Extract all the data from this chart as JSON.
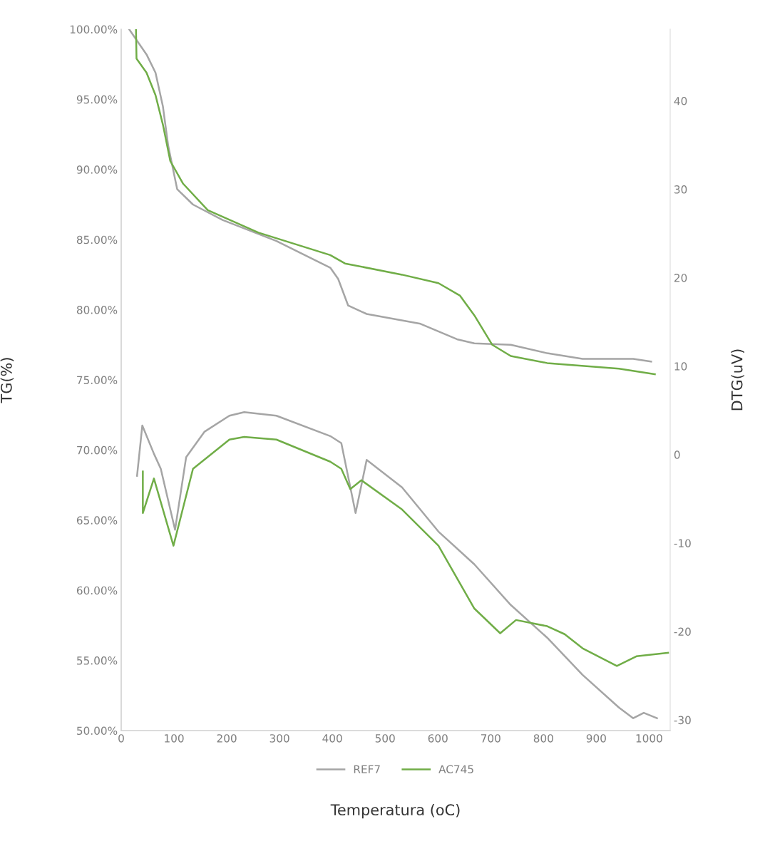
{
  "chart_data": {
    "type": "line",
    "xlabel": "Temperatura (oC)",
    "ylabel": "TG(%)",
    "y2label": "DTG(uV)",
    "xlim": [
      0,
      1040
    ],
    "xticks": [
      0,
      100,
      200,
      300,
      400,
      500,
      600,
      700,
      800,
      900,
      1000
    ],
    "ylim": [
      50,
      100
    ],
    "yticks": [
      {
        "value": 50,
        "label": "50.00%"
      },
      {
        "value": 55,
        "label": "55.00%"
      },
      {
        "value": 60,
        "label": "60.00%"
      },
      {
        "value": 65,
        "label": "65.00%"
      },
      {
        "value": 70,
        "label": "70.00%"
      },
      {
        "value": 75,
        "label": "75.00%"
      },
      {
        "value": 80,
        "label": "80.00%"
      },
      {
        "value": 85,
        "label": "85.00%"
      },
      {
        "value": 90,
        "label": "90.00%"
      },
      {
        "value": 95,
        "label": "95.00%"
      },
      {
        "value": 100,
        "label": "100.00%"
      }
    ],
    "y2lim": [
      -31.2,
      48.1
    ],
    "y2ticks": [
      -30,
      -20,
      -10,
      0,
      10,
      20,
      30,
      40
    ],
    "grid": false,
    "legend": "bottom",
    "marker": "none",
    "line_style": "solid",
    "series": [
      {
        "name": "REF7",
        "color": "#a5a5a5",
        "x": [
          15,
          48,
          65,
          79,
          89,
          106,
          136,
          192,
          294,
          396,
          411,
          430,
          465,
          567,
          636,
          669,
          738,
          807,
          874,
          970,
          1004
        ],
        "values": [
          100,
          98.2,
          96.9,
          94.5,
          91.7,
          88.6,
          87.5,
          86.4,
          84.9,
          83.0,
          82.2,
          80.3,
          79.7,
          79.0,
          77.9,
          77.6,
          77.5,
          76.9,
          76.5,
          76.5,
          76.3
        ]
      },
      {
        "name": "AC745",
        "color": "#70ad47",
        "x": [
          28,
          29,
          48,
          65,
          79,
          93,
          117,
          164,
          260,
          396,
          424,
          532,
          601,
          642,
          669,
          703,
          738,
          807,
          943,
          1011
        ],
        "values": [
          100,
          97.9,
          96.9,
          95.3,
          93.2,
          90.6,
          89.0,
          87.1,
          85.5,
          83.9,
          83.3,
          82.5,
          81.9,
          81.0,
          79.6,
          77.5,
          76.7,
          76.2,
          75.8,
          75.4
        ]
      },
      {
        "color": "#a5a5a5",
        "axis": "y2",
        "x": [
          30,
          40,
          62,
          75,
          102,
          123,
          158,
          205,
          233,
          294,
          396,
          417,
          444,
          465,
          532,
          601,
          669,
          738,
          807,
          874,
          943,
          970,
          990,
          1015
        ],
        "values": [
          -2.4,
          3.3,
          0.1,
          -1.6,
          -8.5,
          -0.3,
          2.6,
          4.4,
          4.8,
          4.4,
          2.1,
          1.3,
          -6.6,
          -0.6,
          -3.7,
          -8.7,
          -12.4,
          -17.0,
          -20.7,
          -24.9,
          -28.6,
          -29.8,
          -29.2,
          -29.8
        ]
      },
      {
        "color": "#70ad47",
        "axis": "y2",
        "x": [
          41,
          41,
          62,
          99,
          136,
          205,
          233,
          294,
          396,
          417,
          434,
          455,
          532,
          601,
          669,
          718,
          748,
          807,
          840,
          874,
          939,
          976,
          1036
        ],
        "values": [
          -1.9,
          -6.6,
          -2.7,
          -10.3,
          -1.6,
          1.7,
          2.0,
          1.7,
          -0.8,
          -1.6,
          -3.9,
          -2.9,
          -6.2,
          -10.3,
          -17.4,
          -20.2,
          -18.7,
          -19.4,
          -20.3,
          -21.9,
          -23.9,
          -22.8,
          -22.4
        ]
      }
    ]
  }
}
